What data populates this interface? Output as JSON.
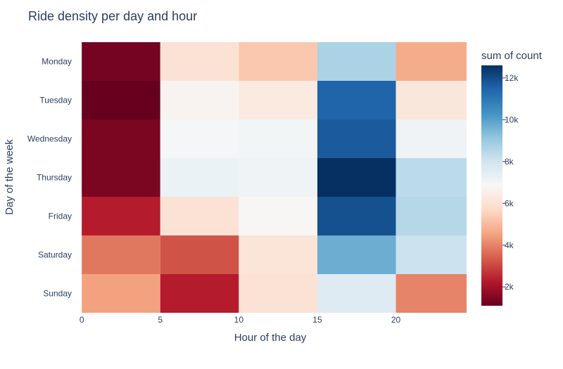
{
  "chart_data": {
    "type": "heatmap",
    "title": "Ride density per day and hour",
    "xlabel": "Hour of the day",
    "ylabel": "Day of the week",
    "x_ticks": [
      0,
      5,
      10,
      15,
      20
    ],
    "x_bins": [
      0,
      5,
      10,
      15,
      20
    ],
    "bin_width": 5,
    "x_range": [
      -0.5,
      24.5
    ],
    "y_categories": [
      "Monday",
      "Tuesday",
      "Wednesday",
      "Thursday",
      "Friday",
      "Saturday",
      "Sunday"
    ],
    "values": [
      [
        1300,
        6000,
        5300,
        8700,
        4700
      ],
      [
        1100,
        6700,
        6300,
        11500,
        6200
      ],
      [
        1400,
        6900,
        7000,
        11700,
        7100
      ],
      [
        1400,
        7200,
        7100,
        12600,
        8400
      ],
      [
        2300,
        6000,
        6800,
        11900,
        8500
      ],
      [
        3800,
        3200,
        6100,
        9700,
        8100
      ],
      [
        4500,
        2300,
        6000,
        7600,
        4000
      ]
    ],
    "colorbar": {
      "title": "sum of count",
      "min": 1100,
      "max": 12600,
      "ticks": [
        2000,
        4000,
        6000,
        8000,
        10000,
        12000
      ],
      "tick_labels": [
        "2k",
        "4k",
        "6k",
        "8k",
        "10k",
        "12k"
      ],
      "colorscale": [
        "#67001f",
        "#b2182b",
        "#d6604d",
        "#f4a582",
        "#fddbc7",
        "#f7f7f7",
        "#d1e5f0",
        "#92c5de",
        "#4393c3",
        "#2166ac",
        "#053061"
      ]
    }
  }
}
